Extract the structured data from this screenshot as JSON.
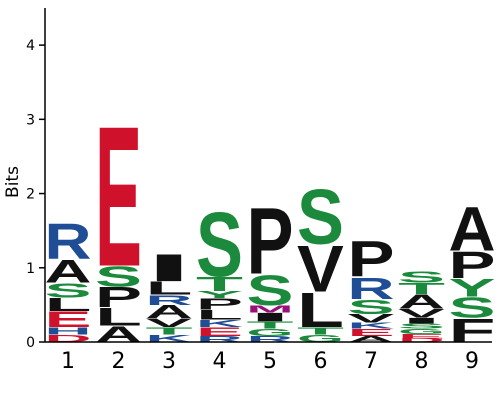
{
  "chart_data": {
    "type": "sequence-logo",
    "ylabel": "Bits",
    "ylim": [
      0,
      4.5
    ],
    "yticks": [
      "0",
      "1",
      "2",
      "3",
      "4"
    ],
    "positions": [
      "1",
      "2",
      "3",
      "4",
      "5",
      "6",
      "7",
      "8",
      "9"
    ],
    "colors": {
      "R": "#1f4e96",
      "K": "#1f4e96",
      "H": "#1f4e96",
      "E": "#d0112b",
      "D": "#d0112b",
      "S": "#1b8a3c",
      "G": "#1b8a3c",
      "T": "#1b8a3c",
      "Y": "#1b8a3c",
      "C": "#1b8a3c",
      "N": "#9a0f7a",
      "Q": "#9a0f7a",
      "M": "#9a0f7a",
      "A": "#111111",
      "L": "#111111",
      "I": "#111111",
      "V": "#111111",
      "P": "#111111",
      "F": "#111111",
      "W": "#111111"
    },
    "stacks": [
      [
        [
          "D",
          0.1
        ],
        [
          "H",
          0.1
        ],
        [
          "E",
          0.22
        ],
        [
          "L",
          0.18
        ],
        [
          "S",
          0.2
        ],
        [
          "A",
          0.32
        ],
        [
          "R",
          0.5
        ]
      ],
      [
        [
          "A",
          0.22
        ],
        [
          "L",
          0.25
        ],
        [
          "P",
          0.28
        ],
        [
          "S",
          0.28
        ],
        [
          "E",
          1.97
        ]
      ],
      [
        [
          "K",
          0.1
        ],
        [
          "T",
          0.1
        ],
        [
          "V",
          0.12
        ],
        [
          "A",
          0.18
        ],
        [
          "R",
          0.14
        ],
        [
          "L",
          0.18
        ],
        [
          "I",
          0.38
        ]
      ],
      [
        [
          "R",
          0.08
        ],
        [
          "E",
          0.12
        ],
        [
          "K",
          0.1
        ],
        [
          "L",
          0.14
        ],
        [
          "P",
          0.15
        ],
        [
          "Y",
          0.1
        ],
        [
          "T",
          0.2
        ],
        [
          "S",
          0.9
        ]
      ],
      [
        [
          "R",
          0.08
        ],
        [
          "G",
          0.1
        ],
        [
          "T",
          0.1
        ],
        [
          "I",
          0.12
        ],
        [
          "M",
          0.1
        ],
        [
          "S",
          0.42
        ],
        [
          "P",
          0.93
        ]
      ],
      [
        [
          "G",
          0.1
        ],
        [
          "T",
          0.1
        ],
        [
          "L",
          0.48
        ],
        [
          "V",
          0.65
        ],
        [
          "S",
          0.77
        ]
      ],
      [
        [
          "A",
          0.08
        ],
        [
          "E",
          0.1
        ],
        [
          "K",
          0.08
        ],
        [
          "V",
          0.12
        ],
        [
          "S",
          0.2
        ],
        [
          "R",
          0.3
        ],
        [
          "P",
          0.5
        ]
      ],
      [
        [
          "D",
          0.05
        ],
        [
          "E",
          0.06
        ],
        [
          "G",
          0.07
        ],
        [
          "S",
          0.07
        ],
        [
          "I",
          0.08
        ],
        [
          "V",
          0.12
        ],
        [
          "A",
          0.2
        ],
        [
          "T",
          0.15
        ],
        [
          "S",
          0.15
        ]
      ],
      [
        [
          "F",
          0.33
        ],
        [
          "S",
          0.28
        ],
        [
          "Y",
          0.25
        ],
        [
          "P",
          0.37
        ],
        [
          "A",
          0.62
        ]
      ]
    ]
  }
}
